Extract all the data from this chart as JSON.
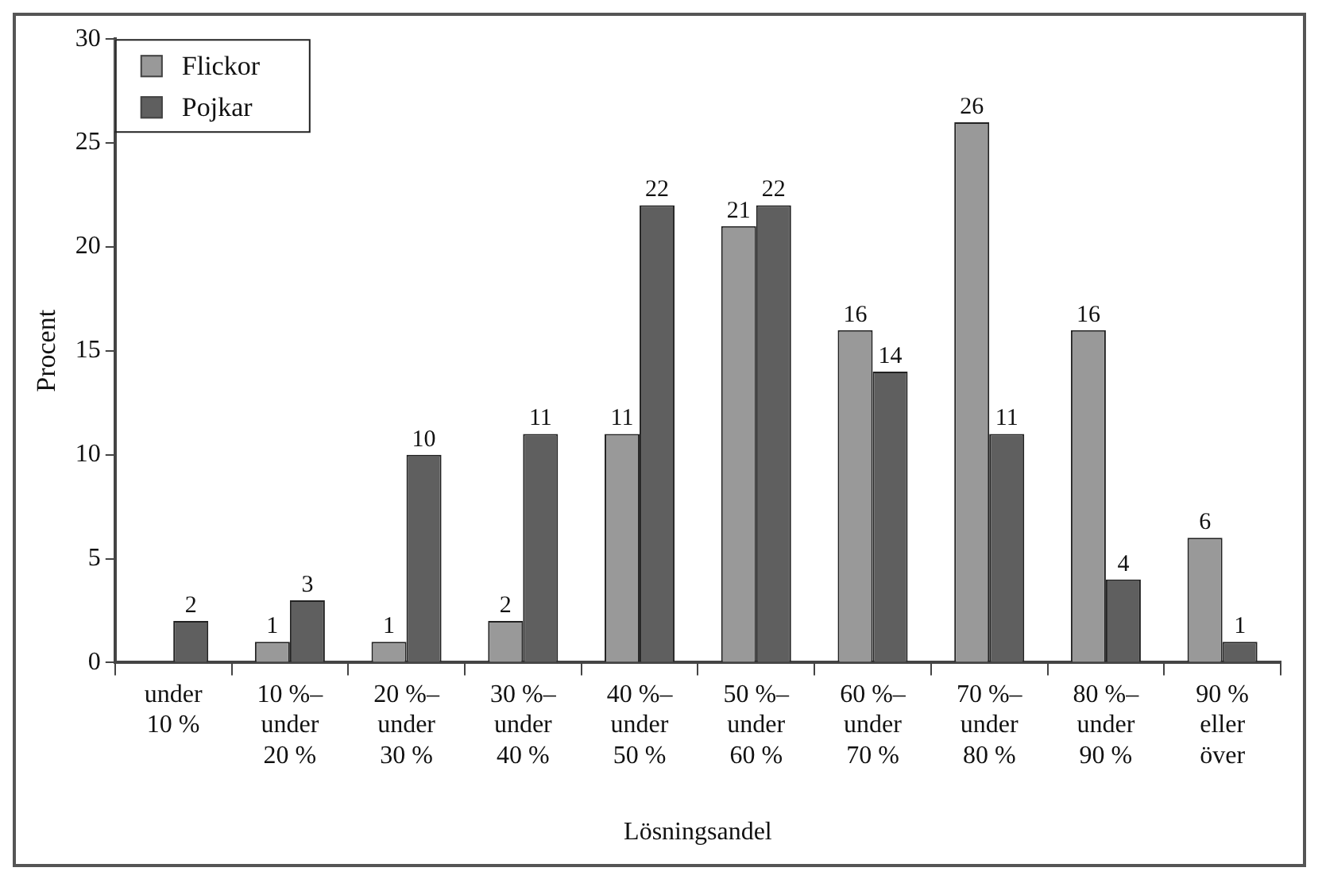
{
  "chart_data": {
    "type": "bar",
    "xlabel": "Lösningsandel",
    "ylabel": "Procent",
    "categories": [
      "under 10 %",
      "10 %– under 20 %",
      "20 %– under 30 %",
      "30 %– under 40 %",
      "40 %– under 50 %",
      "50 %– under 60 %",
      "60 %– under 70 %",
      "70 %– under 80 %",
      "80 %– under 90 %",
      "90 % eller över"
    ],
    "series": [
      {
        "name": "Flickor",
        "color": "#999999",
        "values": [
          null,
          1,
          1,
          2,
          11,
          21,
          16,
          26,
          16,
          6
        ],
        "value_labels": [
          null,
          "1",
          "1",
          "2",
          "11",
          "21",
          "16",
          "26",
          "16",
          "6"
        ]
      },
      {
        "name": "Pojkar",
        "color": "#5f5f5f",
        "values": [
          2,
          3,
          10,
          11,
          22,
          22,
          14,
          11,
          4,
          1
        ],
        "value_labels": [
          "2",
          "3",
          "10",
          "11",
          "22",
          "22",
          "14",
          "11",
          "4",
          "1"
        ]
      }
    ],
    "ylim": [
      0,
      30
    ],
    "yticks": [
      0,
      5,
      10,
      15,
      20,
      25,
      30
    ],
    "grid": false,
    "legend": "top left"
  }
}
